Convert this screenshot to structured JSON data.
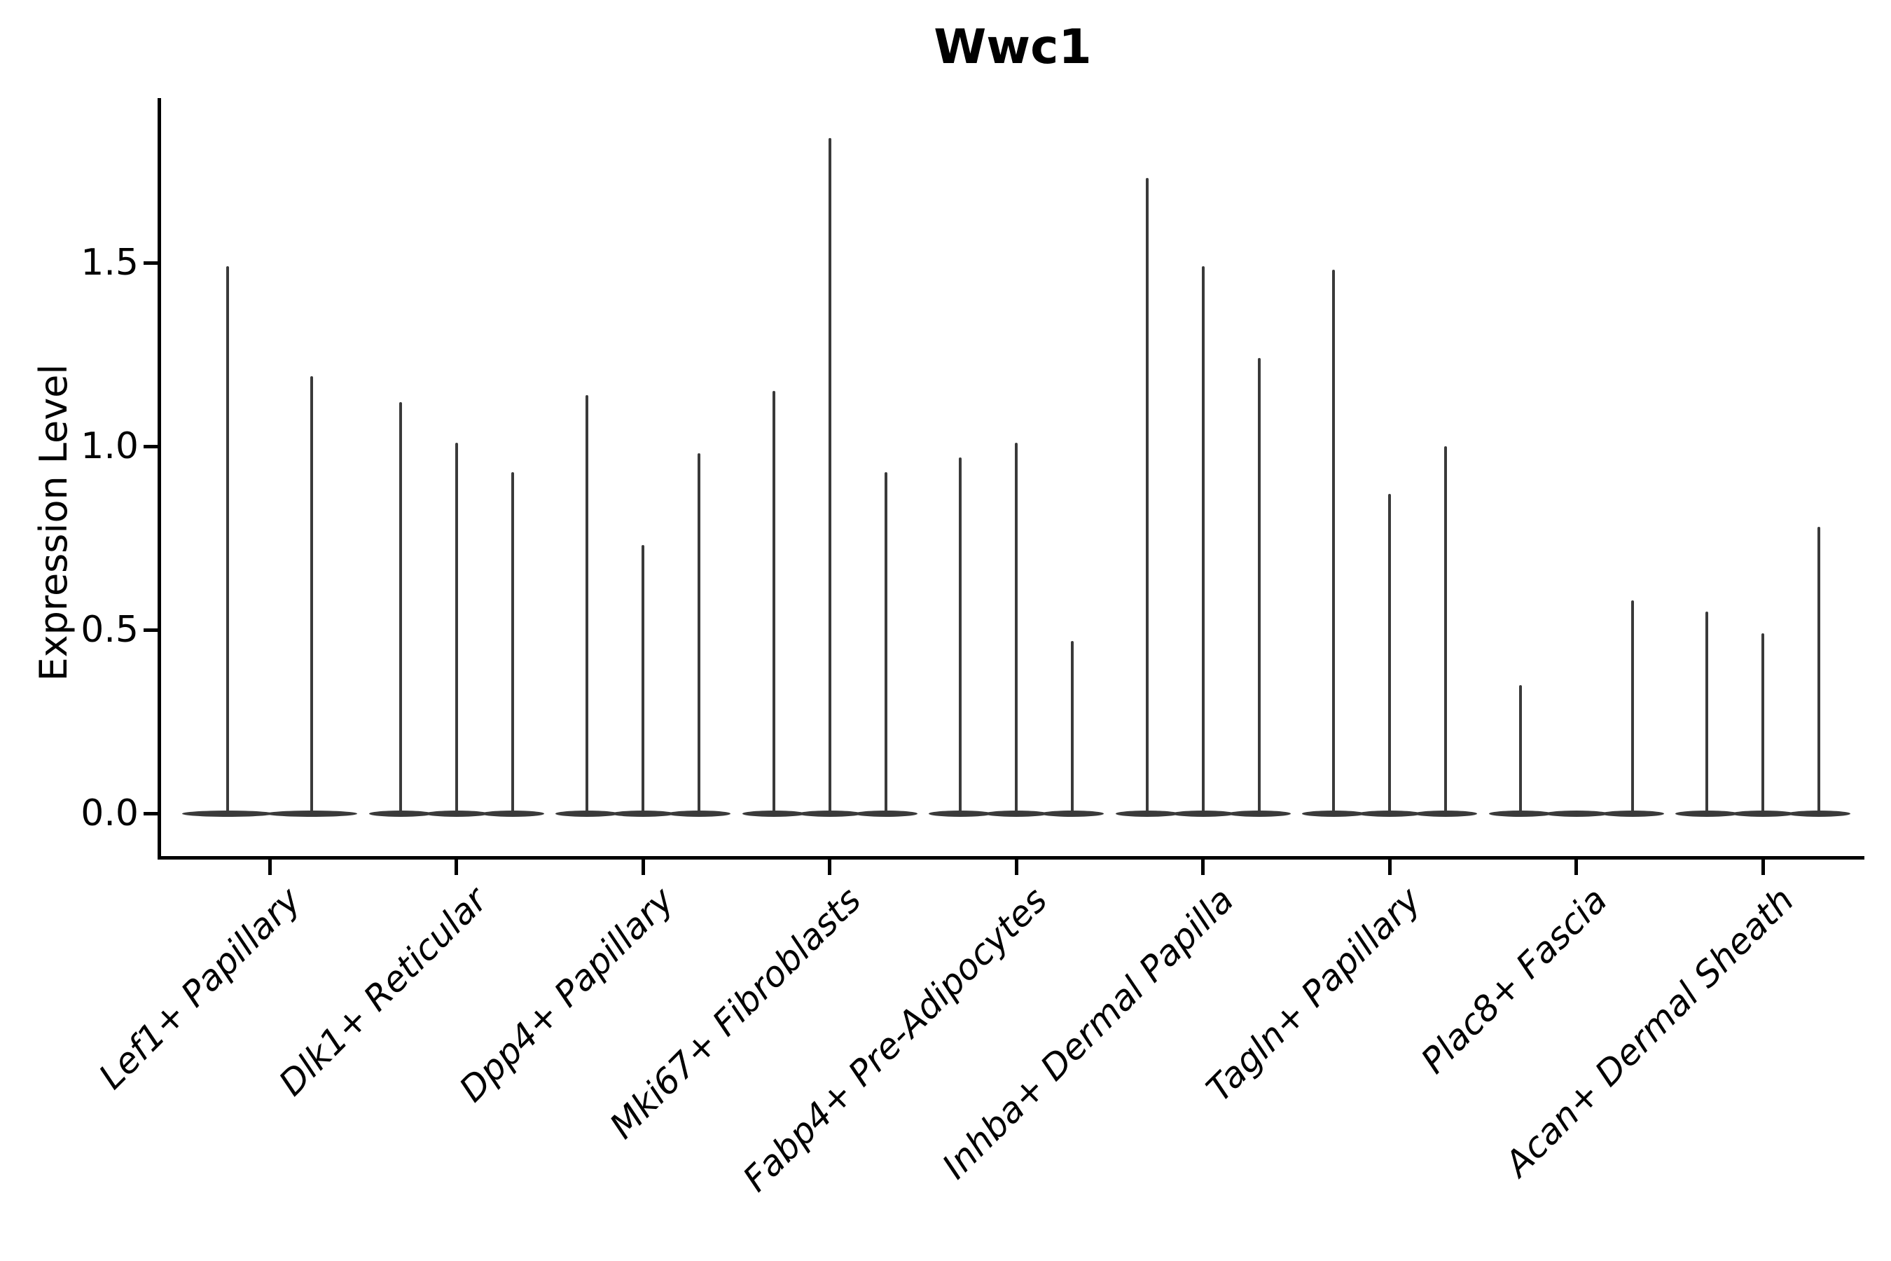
{
  "title": "Wwc1",
  "y_axis_label": "Expression Level",
  "colors": {
    "violin": "#3a3a3a",
    "axis": "#000000",
    "text": "#000000",
    "background": "#ffffff"
  },
  "chart_data": {
    "type": "violin",
    "title": "Wwc1",
    "xlabel": "",
    "ylabel": "Expression Level",
    "grid": false,
    "legend": "none",
    "ylim": [
      -0.12,
      1.95
    ],
    "ytick_labels": [
      "0.0",
      "0.5",
      "1.0",
      "1.5"
    ],
    "ytick_values": [
      0.0,
      0.5,
      1.0,
      1.5
    ],
    "note": "Each category holds 2-3 thin violins: density mass concentrated at 0 (flat pancake) with a thin spike up to the max expression value listed.",
    "categories": [
      {
        "label": "Lef1+ Papillary",
        "violin_max": [
          1.49,
          1.19
        ]
      },
      {
        "label": "Dlk1+ Reticular",
        "violin_max": [
          1.12,
          1.01,
          0.93
        ]
      },
      {
        "label": "Dpp4+ Papillary",
        "violin_max": [
          1.14,
          0.73,
          0.98
        ]
      },
      {
        "label": "Mki67+ Fibroblasts",
        "violin_max": [
          1.15,
          1.84,
          0.93
        ]
      },
      {
        "label": "Fabp4+ Pre-Adipocytes",
        "violin_max": [
          0.97,
          1.01,
          0.47
        ]
      },
      {
        "label": "Inhba+ Dermal Papilla",
        "violin_max": [
          1.73,
          1.49,
          1.24
        ]
      },
      {
        "label": "Tagln+ Papillary",
        "violin_max": [
          1.48,
          0.87,
          1.0
        ]
      },
      {
        "label": "Plac8+ Fascia",
        "violin_max": [
          0.35,
          0.0,
          0.58
        ]
      },
      {
        "label": "Acan+ Dermal Sheath",
        "violin_max": [
          0.55,
          0.49,
          0.78
        ]
      }
    ]
  }
}
